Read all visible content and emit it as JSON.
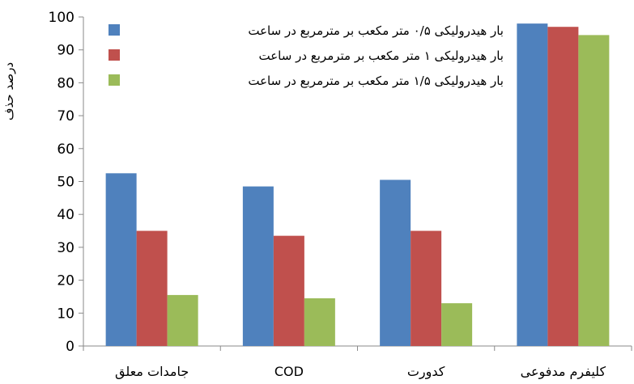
{
  "chart_data": {
    "type": "bar",
    "title": "",
    "xlabel": "",
    "ylabel": "درصد حذف",
    "ylim": [
      0,
      100
    ],
    "yticks": [
      0,
      10,
      20,
      30,
      40,
      50,
      60,
      70,
      80,
      90,
      100
    ],
    "grid": false,
    "legend_position": "top-left",
    "categories": [
      "جامدات معلق",
      "COD",
      "کدورت",
      "کلیفرم مدفوعی"
    ],
    "series": [
      {
        "name": "بار هیدرولیکی ۰/۵ متر مکعب بر مترمربع در ساعت",
        "color": "#4F81BD",
        "values": [
          52.5,
          48.5,
          50.5,
          98
        ]
      },
      {
        "name": "بار هیدرولیکی ۱ متر مکعب بر مترمربع در ساعت",
        "color": "#C0504D",
        "values": [
          35,
          33.5,
          35,
          97
        ]
      },
      {
        "name": "بار هیدرولیکی ۱/۵ متر مکعب بر مترمربع در ساعت",
        "color": "#9BBB59",
        "values": [
          15.5,
          14.5,
          13,
          94.5
        ]
      }
    ]
  }
}
